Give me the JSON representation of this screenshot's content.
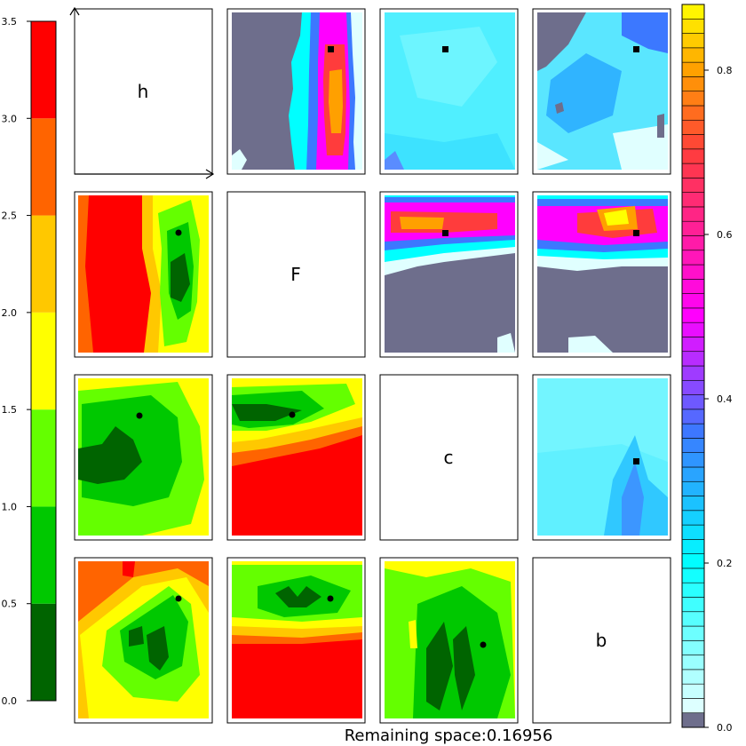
{
  "chart_data": {
    "type": "heatmap",
    "title": "",
    "footer_text": "Remaining space:0.16956",
    "diagonal_labels": [
      "h",
      "F",
      "c",
      "b"
    ],
    "left_colorbar": {
      "levels": [
        0.0,
        0.5,
        1.0,
        1.5,
        2.0,
        2.5,
        3.0,
        3.5
      ],
      "tick_labels": [
        "0.0",
        "0.5",
        "1.0",
        "1.5",
        "2.0",
        "2.5",
        "3.0",
        "3.5"
      ],
      "colors": [
        "#006400",
        "#00c800",
        "#64ff00",
        "#ffff00",
        "#ffc800",
        "#ff6400",
        "#ff0000"
      ]
    },
    "right_colorbar": {
      "range": [
        0.0,
        0.88
      ],
      "tick_values": [
        0.0,
        0.2,
        0.4,
        0.6,
        0.8
      ],
      "tick_labels": [
        "0.0",
        "0.2",
        "0.4",
        "0.6",
        "0.8"
      ],
      "bands": 50,
      "stops": [
        {
          "v": 0.0,
          "c": "#ffffff"
        },
        {
          "v": 0.2,
          "c": "#00ffff"
        },
        {
          "v": 0.36,
          "c": "#3c78ff"
        },
        {
          "v": 0.5,
          "c": "#ff00ff"
        },
        {
          "v": 0.7,
          "c": "#ff3c3c"
        },
        {
          "v": 0.8,
          "c": "#ffa000"
        },
        {
          "v": 0.88,
          "c": "#ffff00"
        }
      ],
      "below_color": "#6e6e8c"
    },
    "upper_panels": [
      {
        "row": 0,
        "col": 1,
        "dominant": "vertical ridge",
        "marker": "square"
      },
      {
        "row": 0,
        "col": 2,
        "dominant": "cyan plateau",
        "marker": "square"
      },
      {
        "row": 0,
        "col": 3,
        "dominant": "cyan plateau",
        "marker": "square"
      },
      {
        "row": 1,
        "col": 2,
        "dominant": "horizontal ridge",
        "marker": "square"
      },
      {
        "row": 1,
        "col": 3,
        "dominant": "horizontal ridge",
        "marker": "square"
      },
      {
        "row": 2,
        "col": 3,
        "dominant": "cyan plateau",
        "marker": "square"
      }
    ],
    "lower_panels": [
      {
        "row": 1,
        "col": 0,
        "marker": "dot"
      },
      {
        "row": 2,
        "col": 0,
        "marker": "dot"
      },
      {
        "row": 2,
        "col": 1,
        "marker": "dot"
      },
      {
        "row": 3,
        "col": 0,
        "marker": "dot"
      },
      {
        "row": 3,
        "col": 1,
        "marker": "dot"
      },
      {
        "row": 3,
        "col": 2,
        "marker": "dot"
      }
    ]
  }
}
